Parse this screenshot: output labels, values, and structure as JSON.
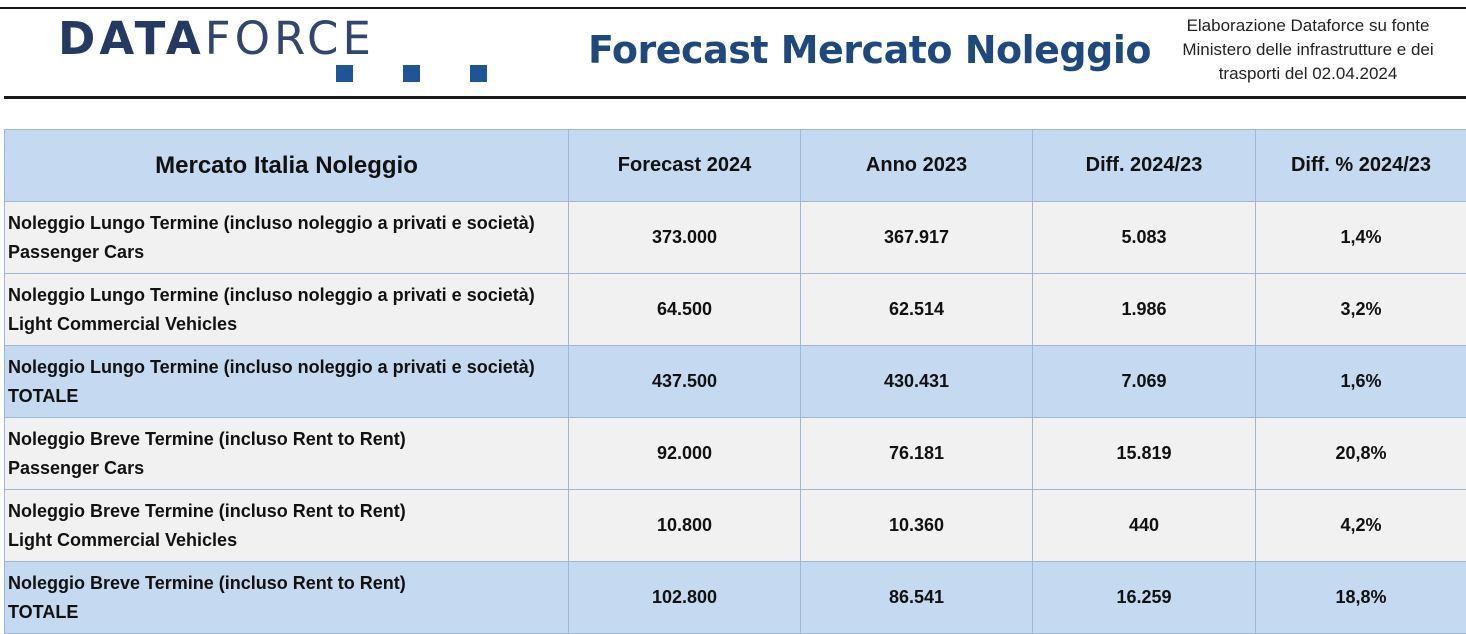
{
  "header": {
    "logo_bold": "DATA",
    "logo_light": "FORCE",
    "title": "Forecast Mercato Noleggio",
    "source_lines": [
      "Elaborazione Dataforce su fonte",
      "Ministero delle infrastrutture e dei",
      "trasporti del 02.04.2024"
    ]
  },
  "colors": {
    "brand_navy": "#243a62",
    "title_blue": "#1f497d",
    "square_blue": "#1f5596",
    "header_fill": "#c5d9f1",
    "row_grey": "#f1f1f1"
  },
  "table": {
    "headers": [
      "Mercato Italia Noleggio",
      "Forecast 2024",
      "Anno 2023",
      "Diff. 2024/23",
      "Diff. % 2024/23"
    ],
    "rows": [
      {
        "line1": "Noleggio Lungo Termine (incluso noleggio a privati e società)",
        "line2": "Passenger Cars",
        "forecast": "373.000",
        "anno": "367.917",
        "diff": "5.083",
        "diff_pct": "1,4%"
      },
      {
        "line1": "Noleggio Lungo Termine (incluso noleggio a privati e società)",
        "line2": "Light Commercial Vehicles",
        "forecast": "64.500",
        "anno": "62.514",
        "diff": "1.986",
        "diff_pct": "3,2%"
      },
      {
        "line1": "Noleggio Lungo Termine (incluso noleggio a privati e società)",
        "line2": "TOTALE",
        "forecast": "437.500",
        "anno": "430.431",
        "diff": "7.069",
        "diff_pct": "1,6%"
      },
      {
        "line1": "Noleggio Breve Termine (incluso Rent to Rent)",
        "line2": "Passenger Cars",
        "forecast": "92.000",
        "anno": "76.181",
        "diff": "15.819",
        "diff_pct": "20,8%"
      },
      {
        "line1": "Noleggio Breve Termine (incluso Rent to Rent)",
        "line2": "Light Commercial Vehicles",
        "forecast": "10.800",
        "anno": "10.360",
        "diff": "440",
        "diff_pct": "4,2%"
      },
      {
        "line1": "Noleggio Breve Termine (incluso Rent to Rent)",
        "line2": "TOTALE",
        "forecast": "102.800",
        "anno": "86.541",
        "diff": "16.259",
        "diff_pct": "18,8%"
      }
    ]
  }
}
